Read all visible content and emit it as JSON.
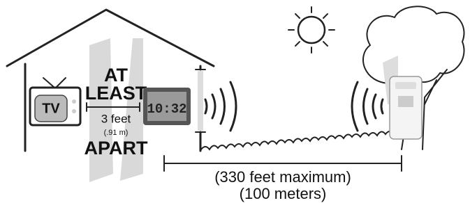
{
  "tv": {
    "label": "TV"
  },
  "spacing": {
    "line1": "AT",
    "line2": "LEAST",
    "distance": "3 feet",
    "metric": "(.91 m)",
    "line3": "APART"
  },
  "clock": {
    "display": "10:32"
  },
  "range": {
    "imperial": "(330 feet maximum)",
    "metric": "(100 meters)"
  }
}
